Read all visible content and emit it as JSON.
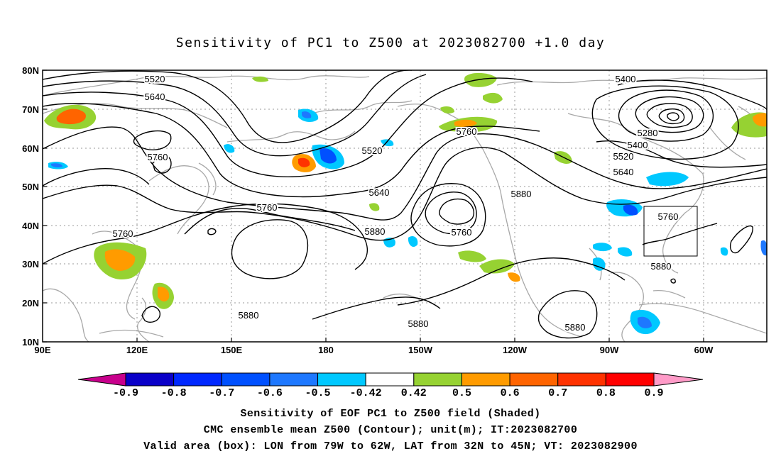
{
  "title": "Sensitivity of PC1 to Z500 at 2023082700 +1.0 day",
  "lat_labels": [
    "80N",
    "70N",
    "60N",
    "50N",
    "40N",
    "30N",
    "20N",
    "10N"
  ],
  "lon_labels": [
    "90E",
    "120E",
    "150E",
    "180",
    "150W",
    "120W",
    "90W",
    "60W"
  ],
  "contour_labels": [
    "5520",
    "5640",
    "5760",
    "5400",
    "5280",
    "5400",
    "5520",
    "5640",
    "5760",
    "5520",
    "5640",
    "5880",
    "5760",
    "5760",
    "5880",
    "5760",
    "5880",
    "5880",
    "5880",
    "5880",
    "5760"
  ],
  "colorbar": {
    "labels": [
      "-0.9",
      "-0.8",
      "-0.7",
      "-0.6",
      "-0.5",
      "-0.42",
      "0.42",
      "0.5",
      "0.6",
      "0.7",
      "0.8",
      "0.9"
    ],
    "colors": [
      "#0a00c8",
      "#0028ff",
      "#0050ff",
      "#1e78ff",
      "#00c8ff",
      "#ffffff",
      "#96d232",
      "#ff9b00",
      "#ff6400",
      "#ff3200",
      "#ff0000"
    ],
    "low_end_color": "#c8008c",
    "high_end_color": "#ff9bc8"
  },
  "captions": {
    "line1": "Sensitivity of EOF PC1 to Z500 field (Shaded)",
    "line2": "CMC ensemble mean Z500 (Contour); unit(m); IT:2023082700",
    "line3": "Valid area (box): LON from 79W to 62W, LAT from 32N to 45N; VT: 2023082900"
  }
}
